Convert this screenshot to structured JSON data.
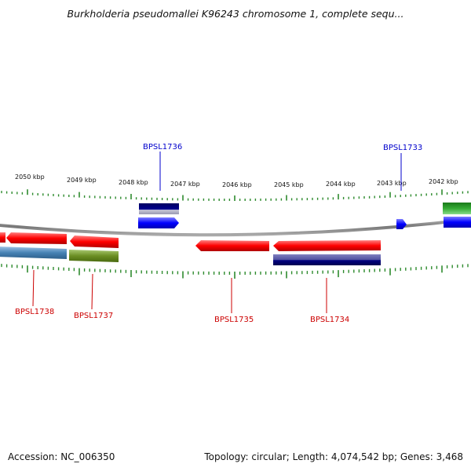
{
  "title": "Burkholderia pseudomallei K96243 chromosome 1, complete sequ...",
  "footer": {
    "accession": "Accession: NC_006350",
    "summary": "Topology: circular; Length: 4,074,542 bp; Genes: 3,468"
  },
  "scale_labels": [
    "2050 kbp",
    "2049 kbp",
    "2048 kbp",
    "2047 kbp",
    "2046 kbp",
    "2045 kbp",
    "2044 kbp",
    "2043 kbp",
    "2042 kbp"
  ],
  "genes_top": [
    {
      "label": "BPSL1736",
      "color": "#0000cc"
    },
    {
      "label": "BPSL1733",
      "color": "#0000cc"
    }
  ],
  "genes_bottom": [
    {
      "label": "BPSL1738",
      "color": "#cc0000"
    },
    {
      "label": "BPSL1737",
      "color": "#cc0000"
    },
    {
      "label": "BPSL1735",
      "color": "#cc0000"
    },
    {
      "label": "BPSL1734",
      "color": "#cc0000"
    }
  ],
  "colors": {
    "forward_cds": "#0000ff",
    "reverse_cds": "#ff0000",
    "backbone": "#888888",
    "ticks": "#2e8b2e",
    "green_feature": "#33aa33",
    "olive_feature": "#6b8e23",
    "steel_feature": "#4682b4",
    "navy_feature": "#000080"
  }
}
